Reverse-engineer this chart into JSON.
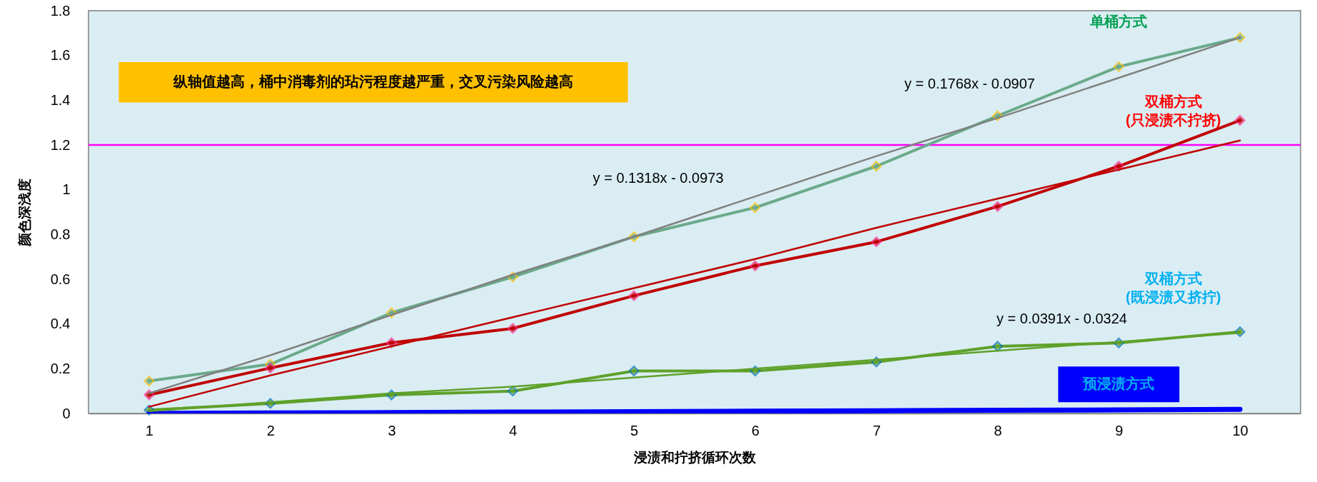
{
  "chart_data": {
    "type": "line",
    "xlabel": "浸渍和拧挤循环次数",
    "ylabel": "颜色深浅度",
    "x": [
      1,
      2,
      3,
      4,
      5,
      6,
      7,
      8,
      9,
      10
    ],
    "xlim": [
      0.5,
      10.5
    ],
    "xticks": [
      1,
      2,
      3,
      4,
      5,
      6,
      7,
      8,
      9,
      10
    ],
    "ylim": [
      0,
      1.8
    ],
    "yticks": [
      0,
      0.2,
      0.4,
      0.6,
      0.8,
      1,
      1.2,
      1.4,
      1.6,
      1.8
    ],
    "grid": true,
    "marker": "diamond",
    "series": [
      {
        "name": "单桶方式",
        "color": "#6aaa8a",
        "values": [
          0.145,
          0.22,
          0.45,
          0.61,
          0.79,
          0.92,
          1.105,
          1.33,
          1.55,
          1.68
        ]
      },
      {
        "name": "双桶方式\n(只浸渍不拧挤)",
        "color": "#c00000",
        "values": [
          0.083,
          0.203,
          0.316,
          0.38,
          0.526,
          0.66,
          0.767,
          0.925,
          1.105,
          1.31
        ]
      },
      {
        "name": "双桶方式\n(既浸渍又挤拧)",
        "color": "#5fa12a",
        "values": [
          0.015,
          0.045,
          0.083,
          0.1,
          0.19,
          0.19,
          0.23,
          0.3,
          0.315,
          0.365
        ]
      },
      {
        "name": "预浸渍方式",
        "color": "#0000ff",
        "marker": "none",
        "values": [
          0,
          0.002,
          0.004,
          0.006,
          0.008,
          0.01,
          0.012,
          0.014,
          0.016,
          0.018
        ]
      },
      {
        "type": "line",
        "color": "#808080",
        "marker": "none",
        "values": [
          0.09,
          0.26,
          0.44,
          0.62,
          0.79,
          0.97,
          1.15,
          1.32,
          1.5,
          1.68
        ]
      },
      {
        "type": "line",
        "color": "#c00000",
        "marker": "none",
        "values": [
          0.03,
          0.17,
          0.3,
          0.43,
          0.56,
          0.69,
          0.83,
          0.96,
          1.09,
          1.22
        ]
      },
      {
        "type": "line",
        "color": "#5fa12a",
        "marker": "none",
        "values": [
          0.01,
          0.05,
          0.09,
          0.12,
          0.16,
          0.2,
          0.24,
          0.28,
          0.32,
          0.36
        ]
      }
    ],
    "ref_lines": [
      {
        "axis": "y",
        "value": 1.2,
        "color": "#ff00ff"
      }
    ],
    "annotations": [
      "纵轴值越高，桶中消毒剂的玷污程度越严重，交叉污染风险越高",
      "y = 0.1768x - 0.0907",
      "y = 0.1318x - 0.0973",
      "y = 0.0391x - 0.0324"
    ]
  }
}
